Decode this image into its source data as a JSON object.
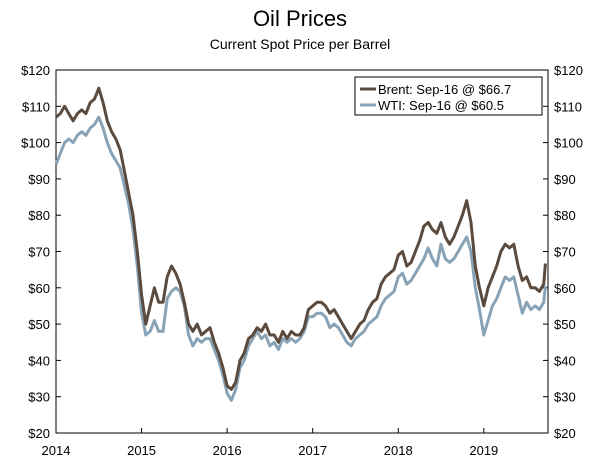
{
  "chart_data": {
    "type": "line",
    "title": "Oil Prices",
    "subtitle": "Current Spot Price per Barrel",
    "xlabel": "",
    "ylabel": "",
    "xlim": [
      2014.0,
      2019.75
    ],
    "ylim": [
      20,
      120
    ],
    "y_ticks": [
      20,
      30,
      40,
      50,
      60,
      70,
      80,
      90,
      100,
      110,
      120
    ],
    "y_tick_labels": [
      "$20",
      "$30",
      "$40",
      "$50",
      "$60",
      "$70",
      "$80",
      "$90",
      "$100",
      "$110",
      "$120"
    ],
    "x_ticks": [
      2014,
      2015,
      2016,
      2017,
      2018,
      2019
    ],
    "x_tick_labels": [
      "2014",
      "2015",
      "2016",
      "2017",
      "2018",
      "2019"
    ],
    "legend_position": "top-right",
    "grid": false,
    "series": [
      {
        "name": "Brent",
        "legend_label": "Brent: Sep-16 @ $66.7",
        "color": "#5b4a3e",
        "x": [
          2014.0,
          2014.05,
          2014.1,
          2014.15,
          2014.2,
          2014.25,
          2014.3,
          2014.35,
          2014.4,
          2014.45,
          2014.5,
          2014.55,
          2014.6,
          2014.65,
          2014.7,
          2014.75,
          2014.8,
          2014.85,
          2014.9,
          2014.95,
          2015.0,
          2015.05,
          2015.1,
          2015.15,
          2015.2,
          2015.25,
          2015.3,
          2015.35,
          2015.4,
          2015.45,
          2015.5,
          2015.55,
          2015.6,
          2015.65,
          2015.7,
          2015.75,
          2015.8,
          2015.85,
          2015.9,
          2015.95,
          2016.0,
          2016.05,
          2016.1,
          2016.15,
          2016.2,
          2016.25,
          2016.3,
          2016.35,
          2016.4,
          2016.45,
          2016.5,
          2016.55,
          2016.6,
          2016.65,
          2016.7,
          2016.75,
          2016.8,
          2016.85,
          2016.9,
          2016.95,
          2017.0,
          2017.05,
          2017.1,
          2017.15,
          2017.2,
          2017.25,
          2017.3,
          2017.35,
          2017.4,
          2017.45,
          2017.5,
          2017.55,
          2017.6,
          2017.65,
          2017.7,
          2017.75,
          2017.8,
          2017.85,
          2017.9,
          2017.95,
          2018.0,
          2018.05,
          2018.1,
          2018.15,
          2018.2,
          2018.25,
          2018.3,
          2018.35,
          2018.4,
          2018.45,
          2018.5,
          2018.55,
          2018.6,
          2018.65,
          2018.7,
          2018.75,
          2018.8,
          2018.85,
          2018.9,
          2018.95,
          2019.0,
          2019.05,
          2019.1,
          2019.15,
          2019.2,
          2019.25,
          2019.3,
          2019.35,
          2019.4,
          2019.45,
          2019.5,
          2019.55,
          2019.6,
          2019.65,
          2019.7,
          2019.72
        ],
        "values": [
          107,
          108,
          110,
          108,
          106,
          108,
          109,
          108,
          111,
          112,
          115,
          111,
          106,
          103,
          101,
          98,
          92,
          86,
          80,
          70,
          58,
          50,
          55,
          60,
          56,
          56,
          63,
          66,
          64,
          61,
          56,
          50,
          48,
          50,
          47,
          48,
          49,
          45,
          42,
          38,
          33,
          32,
          34,
          40,
          42,
          46,
          47,
          49,
          48,
          50,
          47,
          47,
          45,
          48,
          46,
          48,
          47,
          47,
          49,
          54,
          55,
          56,
          56,
          55,
          53,
          54,
          52,
          50,
          48,
          46,
          48,
          50,
          51,
          54,
          56,
          57,
          61,
          63,
          64,
          65,
          69,
          70,
          66,
          67,
          70,
          73,
          77,
          78,
          76,
          75,
          78,
          74,
          72,
          74,
          77,
          80,
          84,
          78,
          66,
          60,
          55,
          60,
          63,
          66,
          70,
          72,
          71,
          72,
          66,
          62,
          63,
          60,
          60,
          59,
          61,
          66.7
        ]
      },
      {
        "name": "WTI",
        "legend_label": "WTI: Sep-16 @ $60.5",
        "color": "#89a3b6",
        "x": [
          2014.0,
          2014.05,
          2014.1,
          2014.15,
          2014.2,
          2014.25,
          2014.3,
          2014.35,
          2014.4,
          2014.45,
          2014.5,
          2014.55,
          2014.6,
          2014.65,
          2014.7,
          2014.75,
          2014.8,
          2014.85,
          2014.9,
          2014.95,
          2015.0,
          2015.05,
          2015.1,
          2015.15,
          2015.2,
          2015.25,
          2015.3,
          2015.35,
          2015.4,
          2015.45,
          2015.5,
          2015.55,
          2015.6,
          2015.65,
          2015.7,
          2015.75,
          2015.8,
          2015.85,
          2015.9,
          2015.95,
          2016.0,
          2016.05,
          2016.1,
          2016.15,
          2016.2,
          2016.25,
          2016.3,
          2016.35,
          2016.4,
          2016.45,
          2016.5,
          2016.55,
          2016.6,
          2016.65,
          2016.7,
          2016.75,
          2016.8,
          2016.85,
          2016.9,
          2016.95,
          2017.0,
          2017.05,
          2017.1,
          2017.15,
          2017.2,
          2017.25,
          2017.3,
          2017.35,
          2017.4,
          2017.45,
          2017.5,
          2017.55,
          2017.6,
          2017.65,
          2017.7,
          2017.75,
          2017.8,
          2017.85,
          2017.9,
          2017.95,
          2018.0,
          2018.05,
          2018.1,
          2018.15,
          2018.2,
          2018.25,
          2018.3,
          2018.35,
          2018.4,
          2018.45,
          2018.5,
          2018.55,
          2018.6,
          2018.65,
          2018.7,
          2018.75,
          2018.8,
          2018.85,
          2018.9,
          2018.95,
          2019.0,
          2019.05,
          2019.1,
          2019.15,
          2019.2,
          2019.25,
          2019.3,
          2019.35,
          2019.4,
          2019.45,
          2019.5,
          2019.55,
          2019.6,
          2019.65,
          2019.7,
          2019.72
        ],
        "values": [
          94,
          97,
          100,
          101,
          100,
          102,
          103,
          102,
          104,
          105,
          107,
          104,
          100,
          97,
          95,
          93,
          88,
          83,
          76,
          66,
          53,
          47,
          48,
          51,
          48,
          48,
          57,
          59,
          60,
          59,
          55,
          47,
          44,
          46,
          45,
          46,
          46,
          43,
          40,
          36,
          31,
          29,
          32,
          38,
          40,
          44,
          46,
          48,
          46,
          47,
          44,
          45,
          43,
          46,
          45,
          46,
          45,
          46,
          48,
          52,
          52,
          53,
          53,
          52,
          49,
          50,
          49,
          47,
          45,
          44,
          46,
          47,
          48,
          50,
          51,
          52,
          55,
          57,
          58,
          59,
          63,
          64,
          61,
          62,
          64,
          66,
          68,
          71,
          68,
          66,
          72,
          68,
          67,
          68,
          70,
          72,
          74,
          70,
          60,
          54,
          47,
          51,
          55,
          57,
          60,
          63,
          62,
          63,
          58,
          53,
          56,
          54,
          55,
          54,
          56,
          60.5
        ]
      }
    ]
  }
}
